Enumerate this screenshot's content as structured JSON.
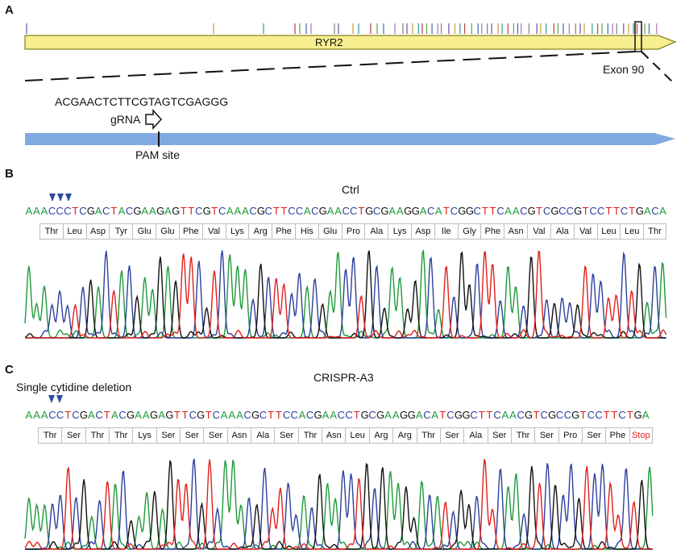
{
  "panels": {
    "A": {
      "letter": "A",
      "gene_label": "RYR2",
      "exon_label": "Exon 90",
      "grna_sequence": "ACGAACTCTTCGTAGTCGAGGG",
      "grna_label": "gRNA",
      "pam_label": "PAM site",
      "colors": {
        "gene_bar": "#f7ef8f",
        "gene_border": "#6b6400",
        "exon_bar": "#7fa9e0"
      }
    },
    "B": {
      "letter": "B",
      "title": "Ctrl",
      "sequence": "AAACCCTCGACTACGAAGAGTTCGTCAAACGCTTCCACGAACCTGCGAAGGACATCGGCTTCAACGTCGCCGTCCTTCTGACA",
      "amino_acids": [
        "Thr",
        "Leu",
        "Asp",
        "Tyr",
        "Glu",
        "Glu",
        "Phe",
        "Val",
        "Lys",
        "Arg",
        "Phe",
        "His",
        "Glu",
        "Pro",
        "Ala",
        "Lys",
        "Asp",
        "Ile",
        "Gly",
        "Phe",
        "Asn",
        "Val",
        "Ala",
        "Val",
        "Leu",
        "Leu",
        "Thr"
      ],
      "marker_count": 3
    },
    "C": {
      "letter": "C",
      "title": "CRISPR-A3",
      "annotation": "Single cytidine deletion",
      "sequence": "AAACCTCGACTACGAAGAGTTCGTCAAACGCTTCCACGAACCTGCGAAGGACATCGGCTTCAACGTCGCCGTCCTTCTGA",
      "amino_acids": [
        "Thr",
        "Ser",
        "Thr",
        "Thr",
        "Lys",
        "Ser",
        "Ser",
        "Ser",
        "Asn",
        "Ala",
        "Ser",
        "Thr",
        "Asn",
        "Leu",
        "Arg",
        "Arg",
        "Thr",
        "Ser",
        "Ala",
        "Ser",
        "Thr",
        "Ser",
        "Pro",
        "Ser",
        "Phe",
        "Stop"
      ],
      "marker_count": 2
    }
  },
  "base_colors": {
    "A": "#1d9a3a",
    "C": "#2c3f9e",
    "G": "#111111",
    "T": "#e0201b"
  }
}
